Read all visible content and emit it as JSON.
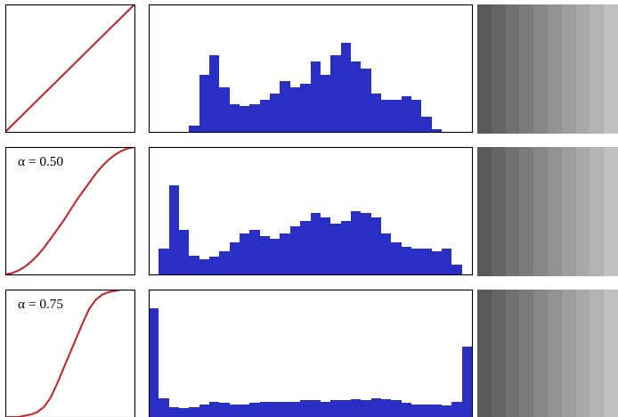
{
  "chart_data": [
    {
      "type": "line",
      "x": [
        0,
        1
      ],
      "values": [
        0,
        1
      ],
      "color": "#c0282d",
      "xlim": [
        0,
        1
      ],
      "ylim": [
        0,
        1
      ],
      "xticks": [],
      "yticks": [],
      "tick_labels": false
    },
    {
      "type": "histogram",
      "bins": [
        0,
        8,
        16,
        24,
        32,
        40,
        48,
        56,
        64,
        72,
        80,
        88,
        96,
        104,
        112,
        120,
        128,
        136,
        144,
        152,
        160,
        168,
        176,
        184,
        192,
        200,
        208,
        216,
        224,
        232,
        240,
        248,
        256
      ],
      "values": [
        0,
        0,
        0,
        0,
        5,
        45,
        60,
        35,
        22,
        20,
        22,
        25,
        30,
        40,
        35,
        38,
        55,
        45,
        60,
        70,
        55,
        50,
        30,
        25,
        25,
        28,
        25,
        12,
        2,
        0,
        0,
        0
      ],
      "color": "#2a2fc4",
      "xlim": [
        0,
        256
      ],
      "ylim": [
        0,
        100
      ],
      "xticks": [],
      "yticks": [],
      "tick_labels": false
    },
    {
      "type": "line",
      "annotation": "α = 0.50",
      "x": [
        0,
        0.05,
        0.1,
        0.15,
        0.2,
        0.25,
        0.3,
        0.35,
        0.4,
        0.45,
        0.5,
        0.55,
        0.6,
        0.65,
        0.7,
        0.75,
        0.8,
        0.85,
        0.9,
        0.95,
        1
      ],
      "values": [
        0,
        0.01,
        0.03,
        0.06,
        0.1,
        0.15,
        0.21,
        0.28,
        0.35,
        0.42,
        0.5,
        0.58,
        0.65,
        0.72,
        0.79,
        0.85,
        0.9,
        0.94,
        0.97,
        0.99,
        1
      ],
      "color": "#c0282d",
      "xlim": [
        0,
        1
      ],
      "ylim": [
        0,
        1
      ],
      "xticks": [],
      "yticks": [],
      "tick_labels": false
    },
    {
      "type": "histogram",
      "bins": [
        0,
        8,
        16,
        24,
        32,
        40,
        48,
        56,
        64,
        72,
        80,
        88,
        96,
        104,
        112,
        120,
        128,
        136,
        144,
        152,
        160,
        168,
        176,
        184,
        192,
        200,
        208,
        216,
        224,
        232,
        240,
        248,
        256
      ],
      "values": [
        0,
        20,
        70,
        35,
        15,
        12,
        14,
        18,
        25,
        32,
        35,
        30,
        28,
        32,
        38,
        42,
        48,
        45,
        40,
        42,
        50,
        48,
        45,
        32,
        25,
        22,
        20,
        20,
        18,
        20,
        8,
        0
      ],
      "color": "#2a2fc4",
      "xlim": [
        0,
        256
      ],
      "ylim": [
        0,
        100
      ],
      "xticks": [],
      "yticks": [],
      "tick_labels": false
    },
    {
      "type": "line",
      "annotation": "α = 0.75",
      "x": [
        0,
        0.05,
        0.1,
        0.15,
        0.2,
        0.25,
        0.3,
        0.35,
        0.4,
        0.45,
        0.5,
        0.55,
        0.6,
        0.65,
        0.7,
        0.75,
        0.8,
        0.85,
        0.9,
        0.95,
        1
      ],
      "values": [
        0,
        0,
        0,
        0.01,
        0.02,
        0.04,
        0.08,
        0.15,
        0.26,
        0.38,
        0.5,
        0.62,
        0.74,
        0.85,
        0.92,
        0.96,
        0.98,
        0.99,
        1,
        1,
        1
      ],
      "color": "#c0282d",
      "xlim": [
        0,
        1
      ],
      "ylim": [
        0,
        1
      ],
      "xticks": [],
      "yticks": [],
      "tick_labels": false
    },
    {
      "type": "histogram",
      "bins": [
        0,
        8,
        16,
        24,
        32,
        40,
        48,
        56,
        64,
        72,
        80,
        88,
        96,
        104,
        112,
        120,
        128,
        136,
        144,
        152,
        160,
        168,
        176,
        184,
        192,
        200,
        208,
        216,
        224,
        232,
        240,
        248,
        256
      ],
      "values": [
        85,
        15,
        8,
        7,
        8,
        10,
        12,
        11,
        10,
        10,
        11,
        12,
        12,
        12,
        12,
        13,
        13,
        12,
        13,
        13,
        14,
        13,
        15,
        14,
        13,
        11,
        10,
        10,
        10,
        9,
        12,
        55
      ],
      "color": "#2a2fc4",
      "xlim": [
        0,
        256
      ],
      "ylim": [
        0,
        100
      ],
      "xticks": [],
      "yticks": [],
      "tick_labels": false
    }
  ]
}
